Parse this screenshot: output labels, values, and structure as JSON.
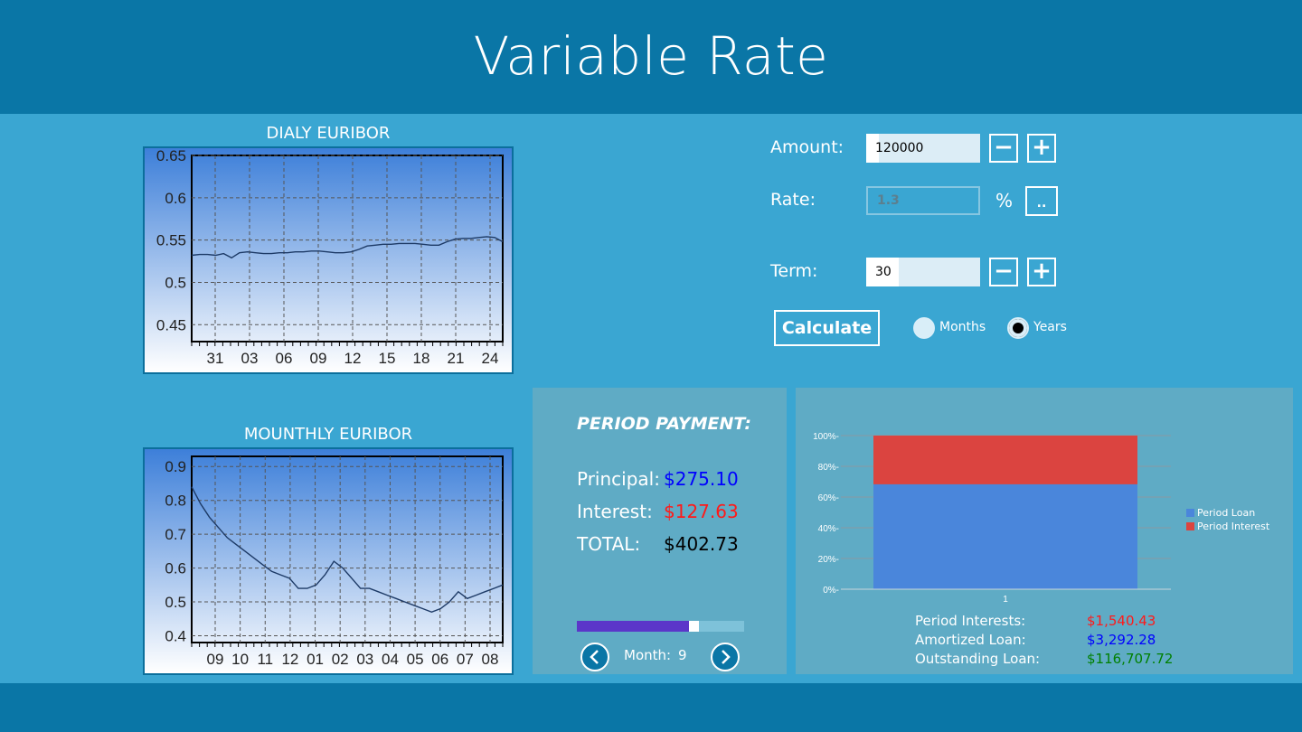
{
  "app": {
    "title": "Variable Rate"
  },
  "daily_chart": {
    "title": "DIALY EURIBOR",
    "chart_data": {
      "type": "line",
      "title": "DIALY EURIBOR",
      "ylim": [
        0.43,
        0.65
      ],
      "y_ticks": [
        "0.65",
        "0.6",
        "0.55",
        "0.5",
        "0.45"
      ],
      "x_ticks": [
        "31",
        "03",
        "06",
        "09",
        "12",
        "15",
        "18",
        "21",
        "24"
      ],
      "series": [
        {
          "values": [
            0.532,
            0.533,
            0.533,
            0.532,
            0.534,
            0.529,
            0.535,
            0.536,
            0.535,
            0.534,
            0.534,
            0.535,
            0.535,
            0.536,
            0.536,
            0.537,
            0.537,
            0.536,
            0.535,
            0.535,
            0.536,
            0.539,
            0.543,
            0.544,
            0.545,
            0.545,
            0.546,
            0.546,
            0.546,
            0.545,
            0.544,
            0.544,
            0.548,
            0.551,
            0.552,
            0.552,
            0.553,
            0.554,
            0.553,
            0.548
          ]
        }
      ]
    }
  },
  "monthly_chart": {
    "title": "MOUNTHLY EURIBOR",
    "chart_data": {
      "type": "line",
      "title": "MOUNTHLY EURIBOR",
      "ylim": [
        0.38,
        0.93
      ],
      "y_ticks": [
        "0.9",
        "0.8",
        "0.7",
        "0.6",
        "0.5",
        "0.4"
      ],
      "x_ticks": [
        "09",
        "10",
        "11",
        "12",
        "01",
        "02",
        "03",
        "04",
        "05",
        "06",
        "07",
        "08"
      ],
      "series": [
        {
          "values": [
            0.84,
            0.79,
            0.75,
            0.72,
            0.69,
            0.67,
            0.65,
            0.63,
            0.61,
            0.59,
            0.58,
            0.57,
            0.54,
            0.54,
            0.55,
            0.58,
            0.62,
            0.6,
            0.57,
            0.54,
            0.54,
            0.53,
            0.52,
            0.51,
            0.5,
            0.49,
            0.48,
            0.47,
            0.48,
            0.5,
            0.53,
            0.51,
            0.52,
            0.53,
            0.54,
            0.55
          ]
        }
      ]
    }
  },
  "form": {
    "amount_label": "Amount:",
    "amount_value": "120000",
    "rate_label": "Rate:",
    "rate_value": "1.3",
    "percent_sign": "%",
    "rate_more_label": "..",
    "term_label": "Term:",
    "term_value": "30",
    "minus_label": "−",
    "plus_label": "+",
    "calculate_label": "Calculate",
    "unit_options": [
      "Months",
      "Years"
    ],
    "unit_selected": "Years"
  },
  "period_payment": {
    "title": "PERIOD PAYMENT:",
    "principal_label": "Principal:",
    "principal_value": "$275.10",
    "interest_label": "Interest:",
    "interest_value": "$127.63",
    "total_label": "TOTAL:",
    "total_value": "$402.73",
    "progress": 0.73,
    "month_label": "Month:",
    "month_value": "9"
  },
  "breakdown_chart": {
    "chart_data": {
      "type": "bar",
      "categories": [
        "1"
      ],
      "series": [
        {
          "name": "Period Loan",
          "values": [
            68.3
          ]
        },
        {
          "name": "Period Interest",
          "values": [
            31.7
          ]
        }
      ],
      "y_ticks": [
        "100%",
        "80%",
        "60%",
        "40%",
        "20%",
        "0%"
      ],
      "ylim": [
        0,
        100
      ]
    },
    "colors": {
      "loan": "#4a86db",
      "interest": "#db4440"
    }
  },
  "summary": {
    "period_interests_label": "Period Interests:",
    "period_interests_value": "$1,540.43",
    "amortized_label": "Amortized Loan:",
    "amortized_value": "$3,292.28",
    "outstanding_label": "Outstanding Loan:",
    "outstanding_value": "$116,707.72"
  },
  "colors": {
    "header": "#0a76a6",
    "background": "#3aa6d2",
    "principal": "#0000ff",
    "interest": "#ff1a1a",
    "total": "#000000",
    "outstanding": "#008000"
  }
}
